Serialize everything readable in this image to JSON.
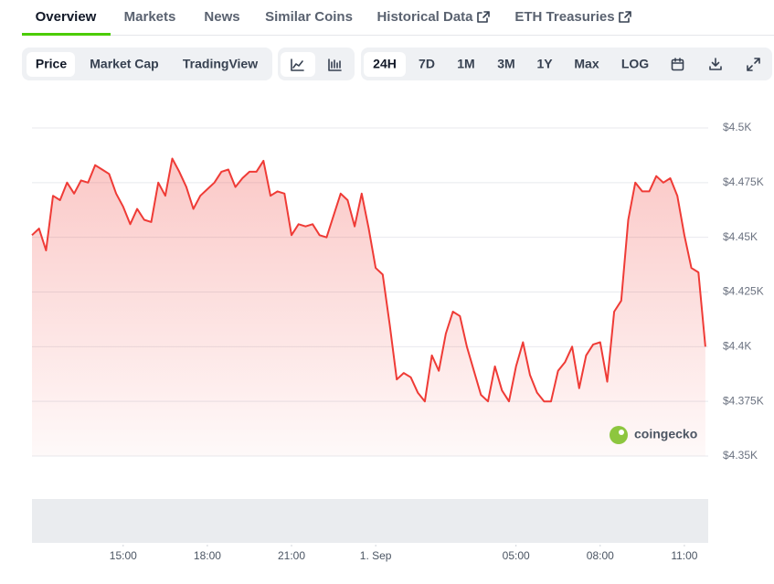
{
  "tabs": [
    "Overview",
    "Markets",
    "News",
    "Similar Coins",
    "Historical Data",
    "ETH Treasuries"
  ],
  "chart_toggle": [
    "Price",
    "Market Cap",
    "TradingView"
  ],
  "ranges": [
    "24H",
    "7D",
    "1M",
    "3M",
    "1Y",
    "Max",
    "LOG"
  ],
  "watermark": "coingecko",
  "chart_data": {
    "type": "line",
    "color": "#ef3b36",
    "grid": true,
    "x": [
      11.75,
      12,
      12.25,
      12.5,
      12.75,
      13,
      13.25,
      13.5,
      13.75,
      14,
      14.25,
      14.5,
      14.75,
      15,
      15.25,
      15.5,
      15.75,
      16,
      16.25,
      16.5,
      16.75,
      17,
      17.25,
      17.5,
      17.75,
      18,
      18.25,
      18.5,
      18.75,
      19,
      19.25,
      19.5,
      19.75,
      20,
      20.25,
      20.5,
      20.75,
      21,
      21.25,
      21.5,
      21.75,
      22,
      22.25,
      22.5,
      22.75,
      23,
      23.25,
      23.5,
      23.75,
      24,
      24.25,
      24.5,
      24.75,
      25,
      25.25,
      25.5,
      25.75,
      26,
      26.25,
      26.5,
      26.75,
      27,
      27.25,
      27.5,
      27.75,
      28,
      28.25,
      28.5,
      28.75,
      29,
      29.25,
      29.5,
      29.75,
      30,
      30.25,
      30.5,
      30.75,
      31,
      31.25,
      31.5,
      31.75,
      32,
      32.25,
      32.5,
      32.75,
      33,
      33.25,
      33.5,
      33.75,
      34,
      34.25,
      34.5,
      34.75,
      35,
      35.25,
      35.5,
      35.75
    ],
    "values": [
      4451,
      4454,
      4444,
      4469,
      4467,
      4475,
      4470,
      4476,
      4475,
      4483,
      4481,
      4479,
      4470,
      4464,
      4456,
      4463,
      4458,
      4457,
      4475,
      4469,
      4486,
      4480,
      4473,
      4463,
      4469,
      4472,
      4475,
      4480,
      4481,
      4473,
      4477,
      4480,
      4480,
      4485,
      4469,
      4471,
      4470,
      4451,
      4456,
      4455,
      4456,
      4451,
      4450,
      4460,
      4470,
      4467,
      4455,
      4470,
      4454,
      4436,
      4433,
      4410,
      4385,
      4388,
      4386,
      4379,
      4375,
      4396,
      4389,
      4406,
      4416,
      4414,
      4400,
      4389,
      4378,
      4375,
      4391,
      4380,
      4375,
      4391,
      4402,
      4387,
      4379,
      4375,
      4375,
      4389,
      4393,
      4400,
      4381,
      4396,
      4401,
      4402,
      4384,
      4416,
      4421,
      4458,
      4475,
      4471,
      4471,
      4478,
      4475,
      4477,
      4469,
      4451,
      4436,
      4434,
      4400
    ],
    "xlim": [
      11.75,
      35.85
    ],
    "xticks": [
      {
        "value": 15,
        "label": "15:00"
      },
      {
        "value": 18,
        "label": "18:00"
      },
      {
        "value": 21,
        "label": "21:00"
      },
      {
        "value": 24,
        "label": "1. Sep"
      },
      {
        "value": 29,
        "label": "05:00"
      },
      {
        "value": 32,
        "label": "08:00"
      },
      {
        "value": 35,
        "label": "11:00"
      }
    ],
    "ylim": [
      4350,
      4500
    ],
    "yticks": [
      {
        "value": 4350,
        "label": "$4.35K"
      },
      {
        "value": 4375,
        "label": "$4.375K"
      },
      {
        "value": 4400,
        "label": "$4.4K"
      },
      {
        "value": 4425,
        "label": "$4.425K"
      },
      {
        "value": 4450,
        "label": "$4.45K"
      },
      {
        "value": 4475,
        "label": "$4.475K"
      },
      {
        "value": 4500,
        "label": "$4.5K"
      }
    ]
  }
}
